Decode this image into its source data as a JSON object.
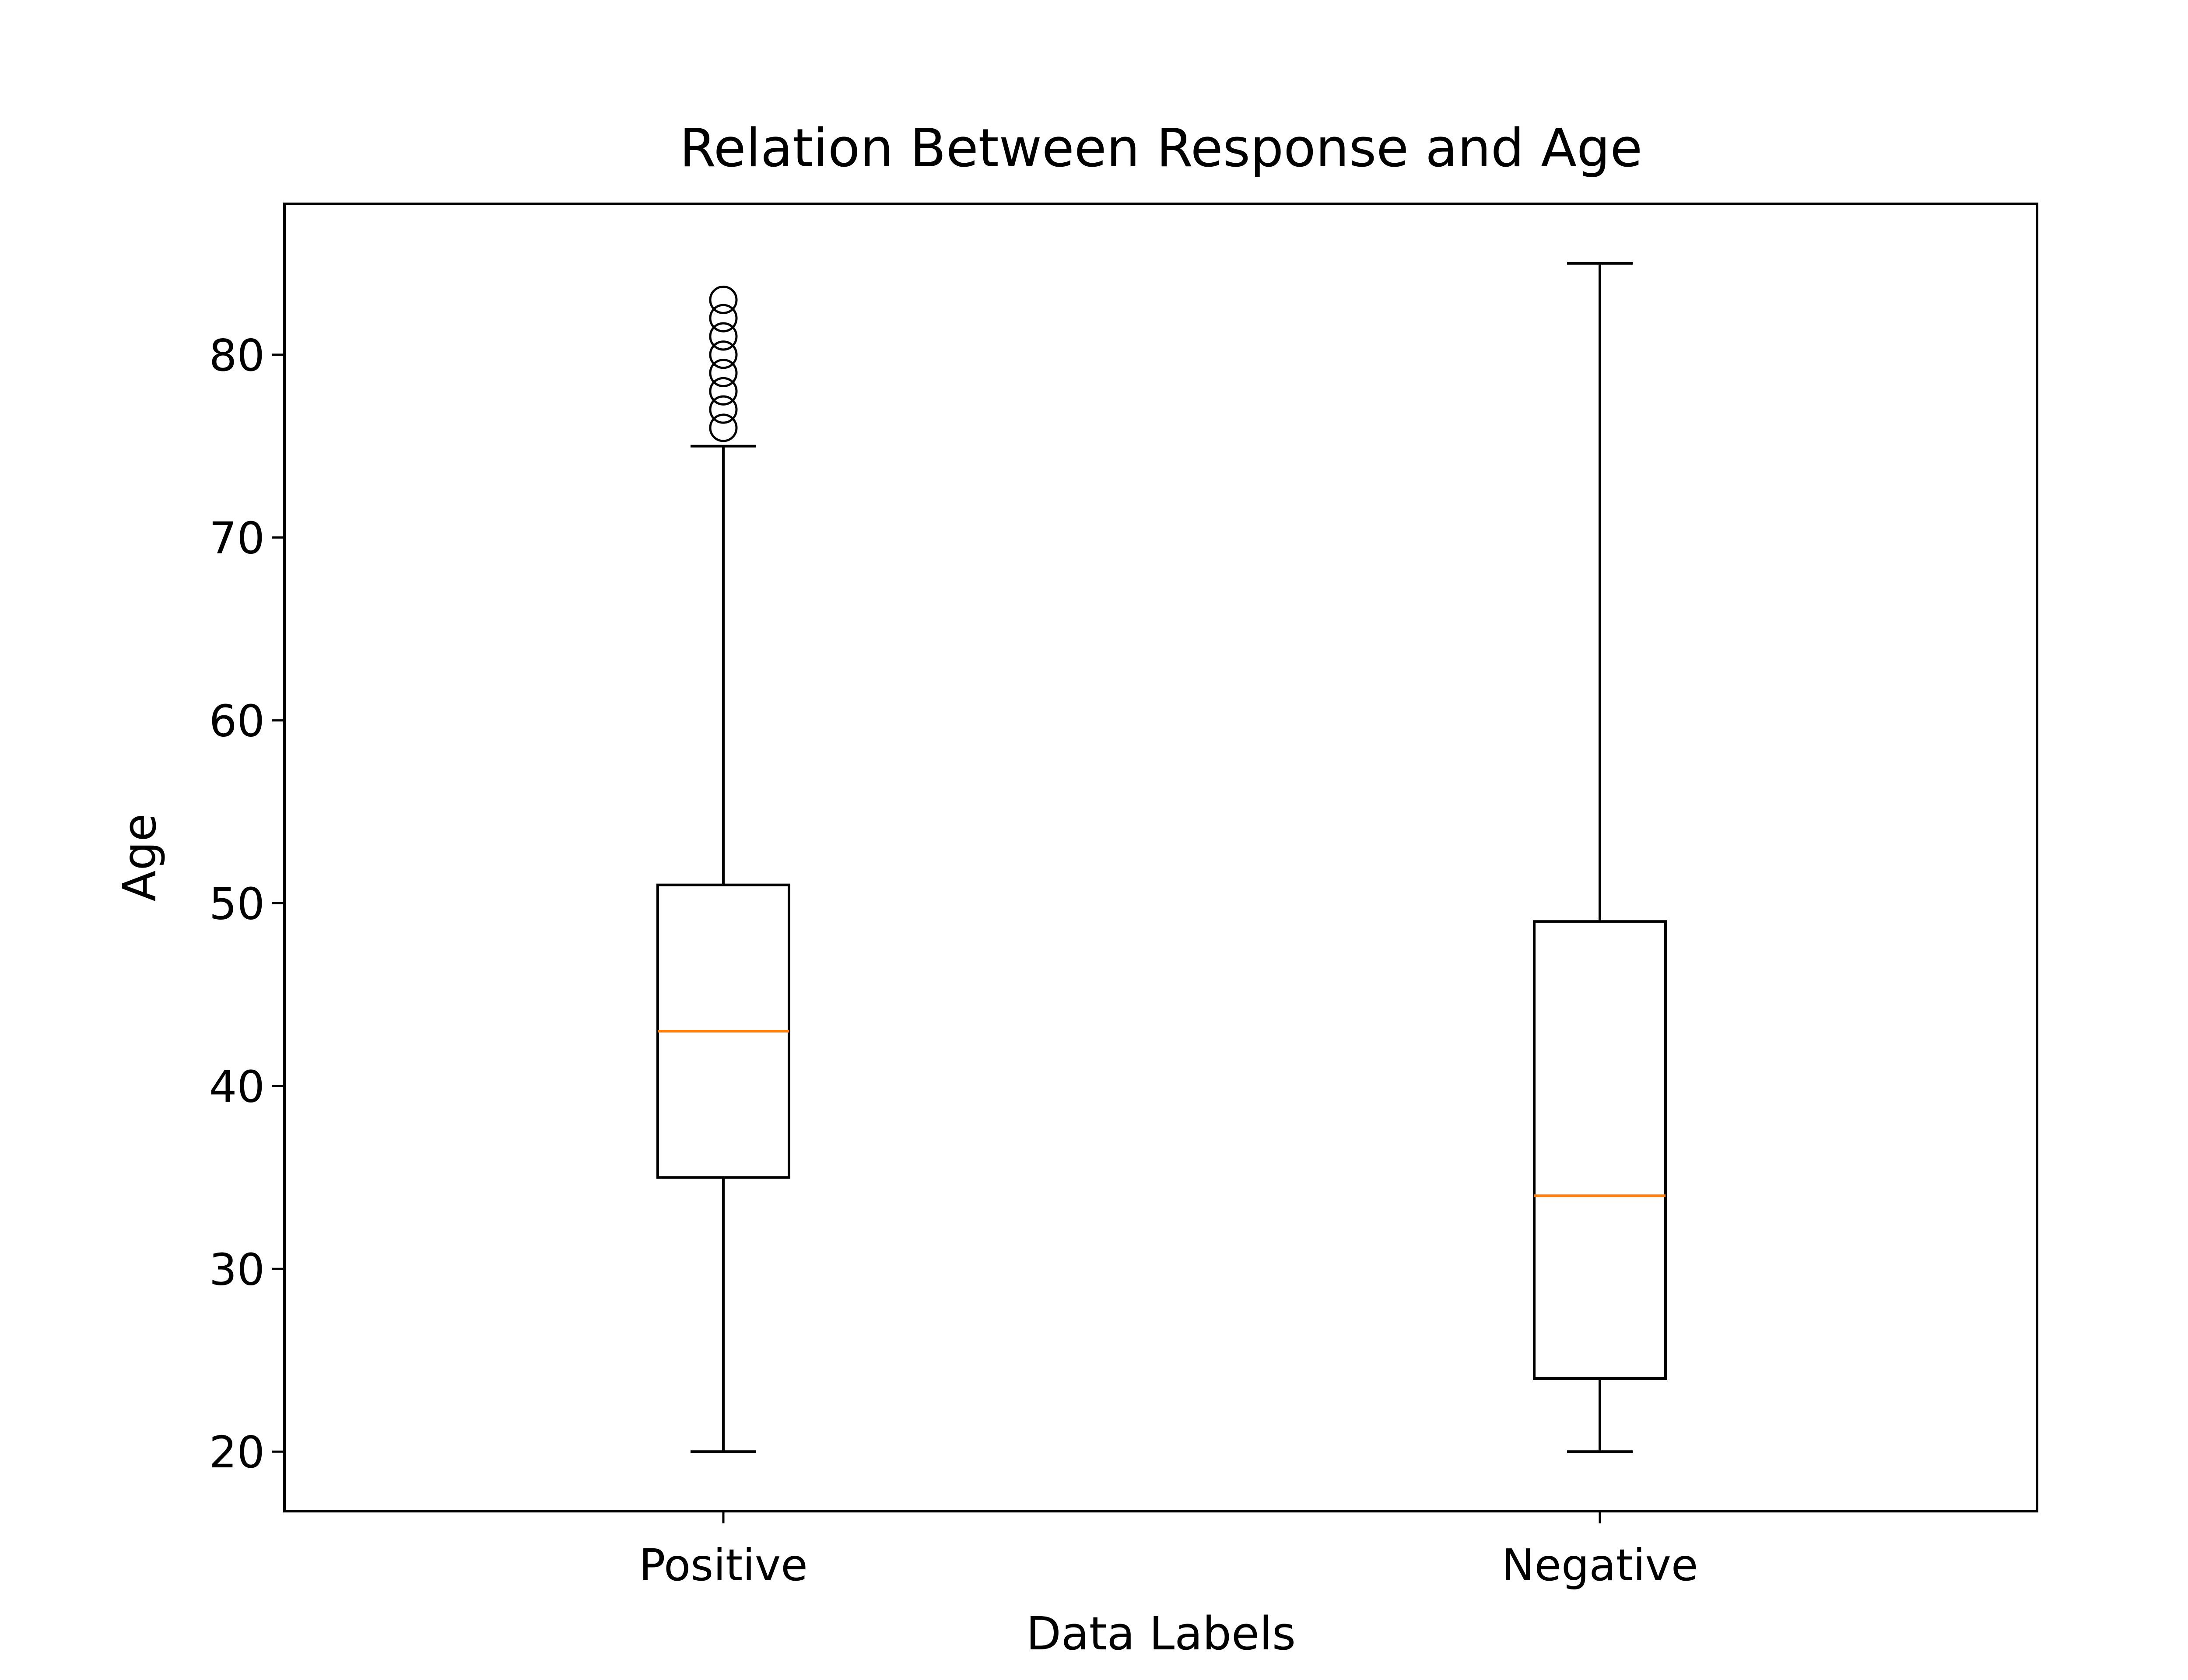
{
  "chart_data": {
    "type": "box",
    "title": "Relation Between Response and Age",
    "xlabel": "Data Labels",
    "ylabel": "Age",
    "categories": [
      "Positive",
      "Negative"
    ],
    "boxes": [
      {
        "name": "Positive",
        "whisker_low": 20,
        "q1": 35,
        "median": 43,
        "q3": 51,
        "whisker_high": 75,
        "outliers": [
          76,
          77,
          78,
          79,
          80,
          81,
          82,
          83
        ]
      },
      {
        "name": "Negative",
        "whisker_low": 20,
        "q1": 24,
        "median": 34,
        "q3": 49,
        "whisker_high": 85,
        "outliers": []
      }
    ],
    "ylim": [
      16.75,
      88.25
    ],
    "yticks": [
      20,
      30,
      40,
      50,
      60,
      70,
      80
    ],
    "grid": false,
    "legend": "none",
    "colors": {
      "box": "#000000",
      "median": "#ff7f0e",
      "background": "#ffffff"
    }
  }
}
